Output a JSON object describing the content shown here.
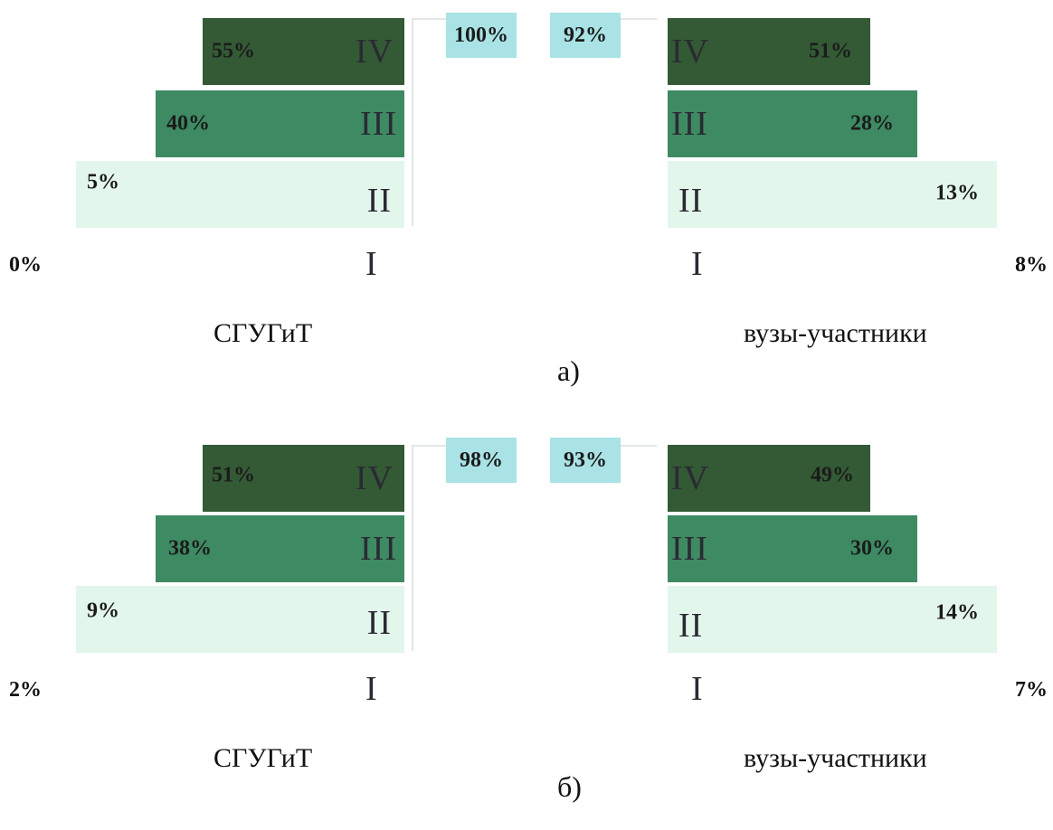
{
  "colors": {
    "level_IV": "#335a34",
    "level_III": "#3e8a63",
    "level_II": "#e3f6ec",
    "total_box": "#a9e3e6",
    "bracket": "#e2e6e6"
  },
  "chart_data": [
    {
      "type": "bar",
      "caption": "а)",
      "groups": [
        {
          "name": "СГУГиТ",
          "levels": [
            {
              "level": "IV",
              "value": 55,
              "label": "55%"
            },
            {
              "level": "III",
              "value": 40,
              "label": "40%"
            },
            {
              "level": "II",
              "value": 5,
              "label": "5%"
            },
            {
              "level": "I",
              "value": 0,
              "label": "0%"
            }
          ],
          "total": {
            "value": 100,
            "label": "100%"
          }
        },
        {
          "name": "вузы-участники",
          "levels": [
            {
              "level": "IV",
              "value": 51,
              "label": "51%"
            },
            {
              "level": "III",
              "value": 28,
              "label": "28%"
            },
            {
              "level": "II",
              "value": 13,
              "label": "13%"
            },
            {
              "level": "I",
              "value": 8,
              "label": "8%"
            }
          ],
          "total": {
            "value": 92,
            "label": "92%"
          }
        }
      ]
    },
    {
      "type": "bar",
      "caption": "б)",
      "groups": [
        {
          "name": "СГУГиТ",
          "levels": [
            {
              "level": "IV",
              "value": 51,
              "label": "51%"
            },
            {
              "level": "III",
              "value": 38,
              "label": "38%"
            },
            {
              "level": "II",
              "value": 9,
              "label": "9%"
            },
            {
              "level": "I",
              "value": 2,
              "label": "2%"
            }
          ],
          "total": {
            "value": 98,
            "label": "98%"
          }
        },
        {
          "name": "вузы-участники",
          "levels": [
            {
              "level": "IV",
              "value": 49,
              "label": "49%"
            },
            {
              "level": "III",
              "value": 30,
              "label": "30%"
            },
            {
              "level": "II",
              "value": 14,
              "label": "14%"
            },
            {
              "level": "I",
              "value": 7,
              "label": "7%"
            }
          ],
          "total": {
            "value": 93,
            "label": "93%"
          }
        }
      ]
    }
  ]
}
